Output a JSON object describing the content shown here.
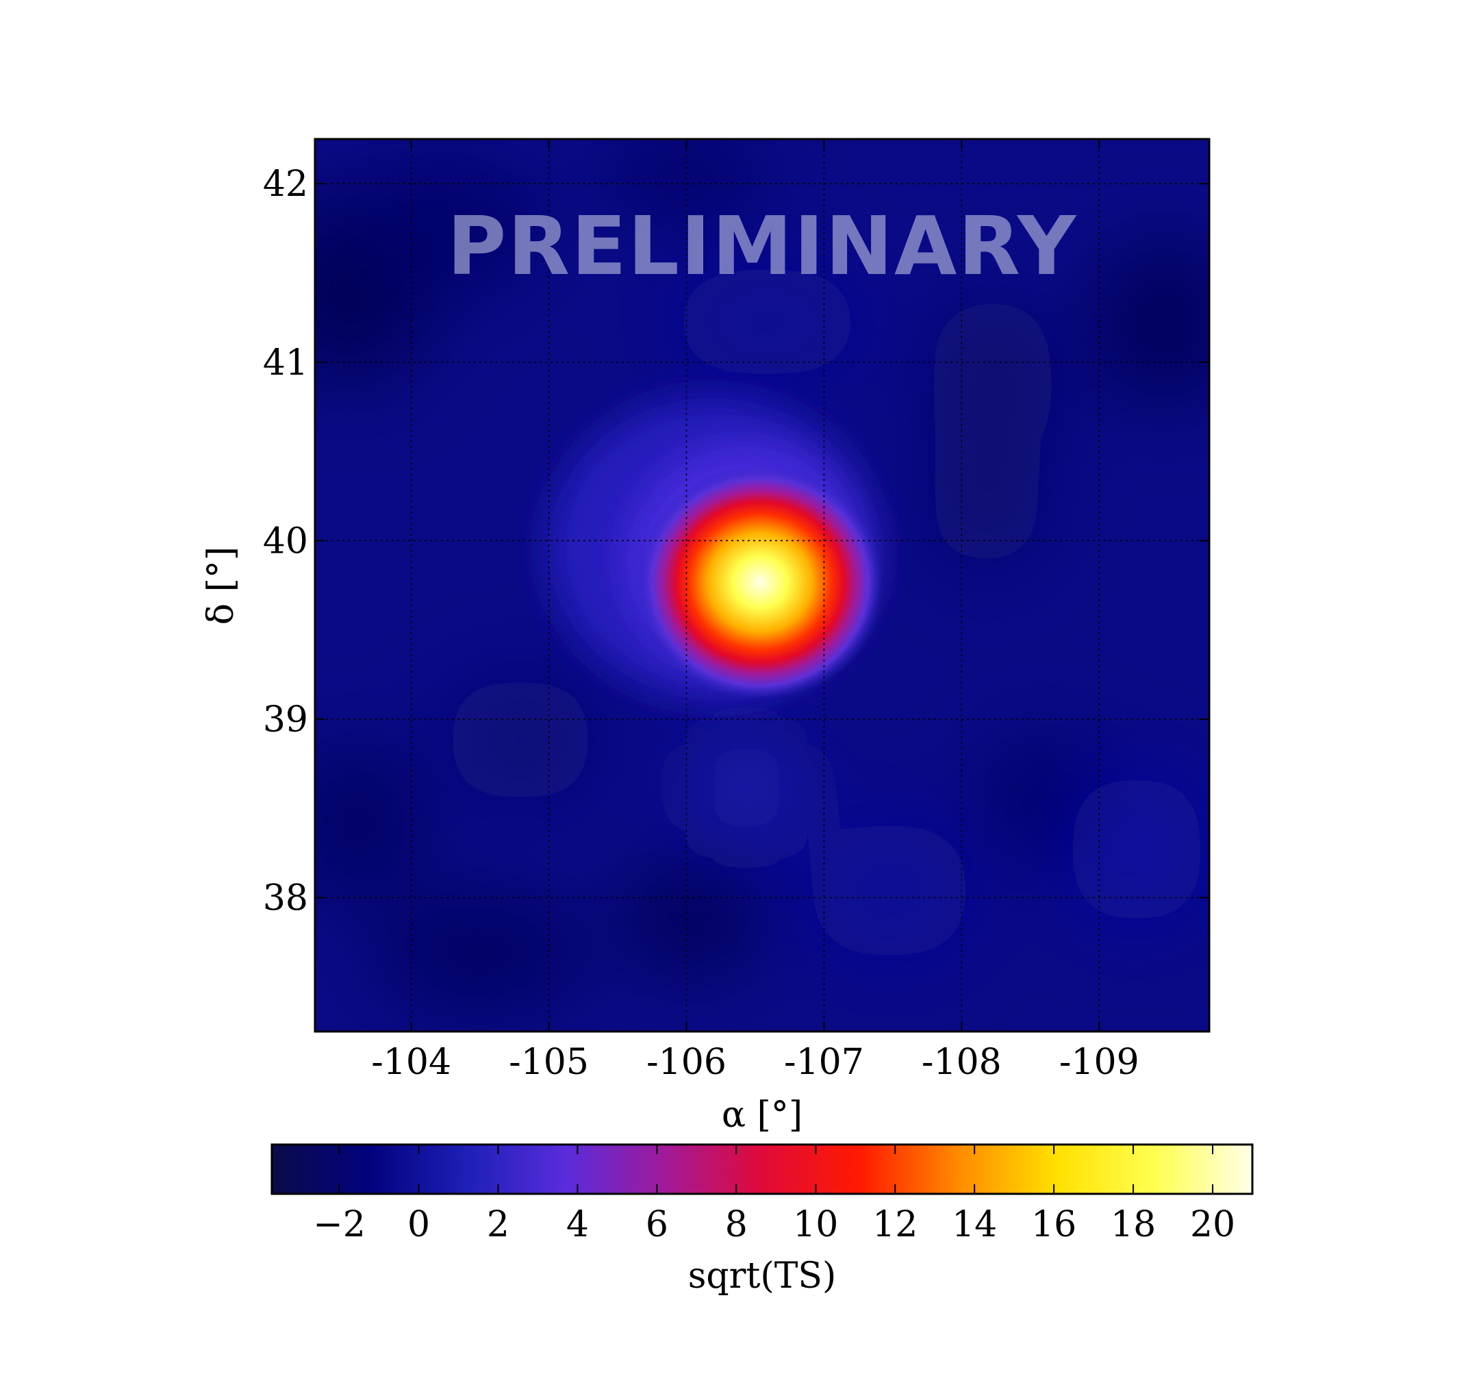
{
  "chart_data": {
    "type": "heatmap",
    "title": "",
    "watermark": "PRELIMINARY",
    "xlabel": "α [°]",
    "ylabel": "δ [°]",
    "xlim": [
      -103.3,
      -109.8
    ],
    "ylim": [
      37.25,
      42.25
    ],
    "x_ticks": [
      -104,
      -105,
      -106,
      -107,
      -108,
      -109
    ],
    "x_tick_labels": [
      "-104",
      "-105",
      "-106",
      "-107",
      "-108",
      "-109"
    ],
    "y_ticks": [
      38,
      39,
      40,
      41,
      42
    ],
    "y_tick_labels": [
      "38",
      "39",
      "40",
      "41",
      "42"
    ],
    "grid": true,
    "colorbar": {
      "label": "sqrt(TS)",
      "range": [
        -3.7,
        21.0
      ],
      "ticks": [
        -2,
        0,
        2,
        4,
        6,
        8,
        10,
        12,
        14,
        16,
        18,
        20
      ],
      "tick_labels": [
        "−2",
        "0",
        "2",
        "4",
        "6",
        "8",
        "10",
        "12",
        "14",
        "16",
        "18",
        "20"
      ],
      "placement": "bottom",
      "colormap": [
        "#0b0b4a",
        "#02027e",
        "#1e20b8",
        "#5a2cdc",
        "#a01a9a",
        "#e00a3a",
        "#ff1a00",
        "#ff8a00",
        "#ffe000",
        "#ffff50",
        "#ffffe8"
      ]
    },
    "peak": {
      "ra": -106.5,
      "dec": 39.75,
      "sqrt_ts": 21.0
    },
    "reference_crosshair": {
      "ra": -106.0,
      "dec": 40.0
    }
  }
}
